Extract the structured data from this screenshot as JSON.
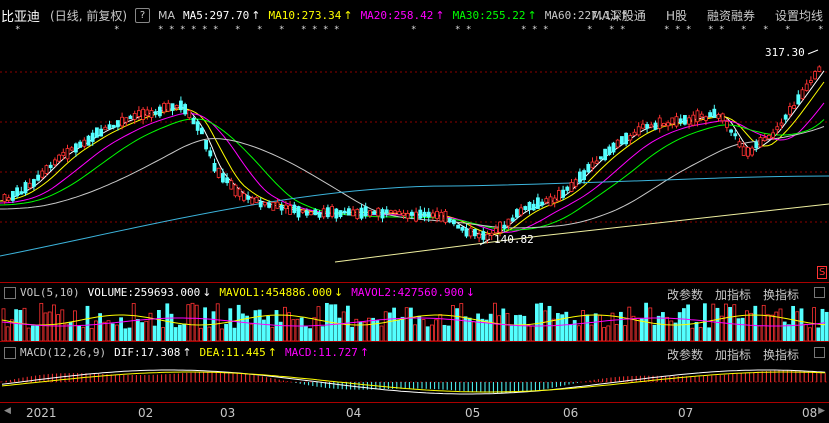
{
  "header": {
    "stock_name": "比亚迪",
    "period": "(日线, 前复权)",
    "help": "?",
    "ma_label": "MA",
    "ma_items": [
      {
        "label": "MA5:297.70",
        "arrow": "↑",
        "color": "#ffffff"
      },
      {
        "label": "MA10:273.34",
        "arrow": "↑",
        "color": "#ffff00"
      },
      {
        "label": "MA20:258.42",
        "arrow": "↑",
        "color": "#ff00ff"
      },
      {
        "label": "MA30:255.22",
        "arrow": "↑",
        "color": "#00ff00"
      },
      {
        "label": "MA60:227.11",
        "arrow": "↑",
        "color": "#c8c8c8"
      }
    ],
    "tabs": [
      "MA深股通",
      "H股",
      "融资融券",
      "设置均线"
    ]
  },
  "main_chart": {
    "high_label": "317.30",
    "low_label": "140.82",
    "s_marker": "S"
  },
  "volume": {
    "title": "VOL(5,10)",
    "volume_label": "VOLUME:259693.000",
    "volume_arrow": "↓",
    "mavol1_label": "MAVOL1:454886.000",
    "mavol1_arrow": "↓",
    "mavol2_label": "MAVOL2:427560.900",
    "mavol2_arrow": "↓",
    "buttons": [
      "改参数",
      "加指标",
      "换指标"
    ]
  },
  "macd": {
    "title": "MACD(12,26,9)",
    "dif_label": "DIF:17.308",
    "dif_arrow": "↑",
    "dea_label": "DEA:11.445",
    "dea_arrow": "↑",
    "macd_label": "MACD:11.727",
    "macd_arrow": "↑",
    "buttons": [
      "改参数",
      "加指标",
      "换指标"
    ]
  },
  "time_axis": {
    "labels": [
      "2021",
      "02",
      "03",
      "04",
      "05",
      "06",
      "07",
      "08"
    ]
  },
  "colors": {
    "up": "#ff3232",
    "down": "#54ffff",
    "ma5": "#ffffff",
    "ma10": "#ffff00",
    "ma20": "#ff00ff",
    "ma30": "#00ff00",
    "ma60": "#c8c8c8",
    "grid": "#8b0000"
  }
}
